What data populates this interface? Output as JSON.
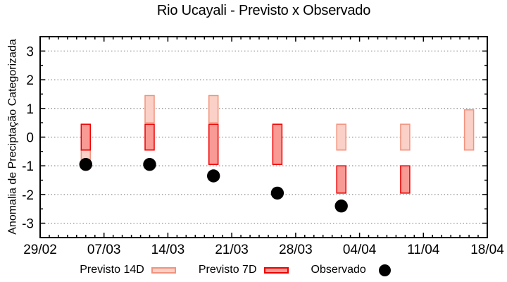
{
  "page": {
    "background": "#ffffff"
  },
  "chart_data": {
    "type": "bar",
    "subtype": "floating-range-bars-with-scatter",
    "title": "Rio Ucayali - Previsto x Observado",
    "ylabel": "Anomalia de Preciptação Categorizada",
    "ylim": [
      -3.5,
      3.5
    ],
    "yticks": [
      3,
      2,
      1,
      0,
      -1,
      -2,
      -3
    ],
    "y_minor_tick_step": 0.5,
    "grid": "horizontal dotted lines at integer y values",
    "grid_color": "#929292",
    "axis_color": "#000000",
    "x_axis": {
      "tick_labels": [
        "29/02",
        "07/03",
        "14/03",
        "21/03",
        "28/03",
        "04/04",
        "11/04",
        "18/04"
      ],
      "tick_days": [
        0,
        7,
        14,
        21,
        28,
        35,
        42,
        49
      ],
      "total_days": 49,
      "minor_tick_step_days": 1
    },
    "series": [
      {
        "name": "Previsto 14D",
        "kind": "range-bar",
        "fill": "#FBD0C6",
        "stroke": "#F2937E",
        "bars": [
          {
            "date": "05/03",
            "day": 5,
            "lo": -0.95,
            "hi": -0.45
          },
          {
            "date": "12/03",
            "day": 12,
            "lo": 0.5,
            "hi": 1.45
          },
          {
            "date": "19/03",
            "day": 19,
            "lo": 0.5,
            "hi": 1.45
          },
          {
            "date": "02/04",
            "day": 33,
            "lo": -0.45,
            "hi": 0.45
          },
          {
            "date": "09/04",
            "day": 40,
            "lo": -0.45,
            "hi": 0.45
          },
          {
            "date": "16/04",
            "day": 47,
            "lo": -0.45,
            "hi": 0.95
          }
        ]
      },
      {
        "name": "Previsto 7D",
        "kind": "range-bar",
        "fill": "#FA9A94",
        "stroke": "#EE0000",
        "bars": [
          {
            "date": "05/03",
            "day": 5,
            "lo": -0.45,
            "hi": 0.45
          },
          {
            "date": "12/03",
            "day": 12,
            "lo": -0.45,
            "hi": 0.45
          },
          {
            "date": "19/03",
            "day": 19,
            "lo": -0.95,
            "hi": 0.45
          },
          {
            "date": "26/03",
            "day": 26,
            "lo": -0.95,
            "hi": 0.45
          },
          {
            "date": "02/04",
            "day": 33,
            "lo": -1.95,
            "hi": -1.0
          },
          {
            "date": "09/04",
            "day": 40,
            "lo": -1.95,
            "hi": -1.0
          }
        ]
      },
      {
        "name": "Observado",
        "kind": "scatter",
        "color": "#000000",
        "points": [
          {
            "date": "05/03",
            "day": 5,
            "value": -0.95
          },
          {
            "date": "12/03",
            "day": 12,
            "value": -0.95
          },
          {
            "date": "19/03",
            "day": 19,
            "value": -1.35
          },
          {
            "date": "26/03",
            "day": 26,
            "value": -1.95
          },
          {
            "date": "02/04",
            "day": 33,
            "value": -2.4
          }
        ]
      }
    ],
    "legend": {
      "position": "bottom-center",
      "items": [
        {
          "label": "Previsto 14D"
        },
        {
          "label": "Previsto 7D"
        },
        {
          "label": "Observado"
        }
      ]
    }
  }
}
